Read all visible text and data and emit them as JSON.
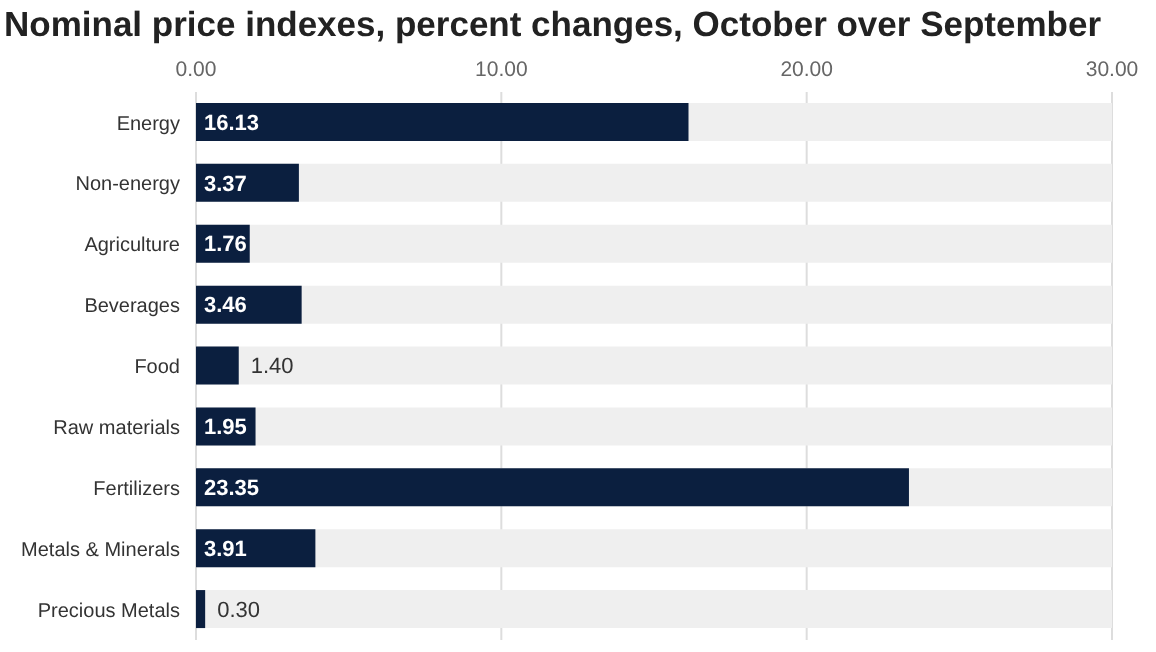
{
  "chart_data": {
    "type": "bar",
    "orientation": "horizontal",
    "title": "Nominal price indexes, percent changes, October over September",
    "categories": [
      "Energy",
      "Non-energy",
      "Agriculture",
      "Beverages",
      "Food",
      "Raw materials",
      "Fertilizers",
      "Metals & Minerals",
      "Precious Metals"
    ],
    "values": [
      16.13,
      3.37,
      1.76,
      3.46,
      1.4,
      1.95,
      23.35,
      3.91,
      0.3
    ],
    "value_labels": [
      "16.13",
      "3.37",
      "1.76",
      "3.46",
      "1.40",
      "1.95",
      "23.35",
      "3.91",
      "0.30"
    ],
    "color": "#0b1f3f",
    "xlim": [
      0,
      30
    ],
    "xticks": [
      {
        "value": 0,
        "label": "0.00"
      },
      {
        "value": 10,
        "label": "10.00"
      },
      {
        "value": 20,
        "label": "20.00"
      },
      {
        "value": 30,
        "label": "30.00"
      }
    ],
    "grid": "x"
  }
}
